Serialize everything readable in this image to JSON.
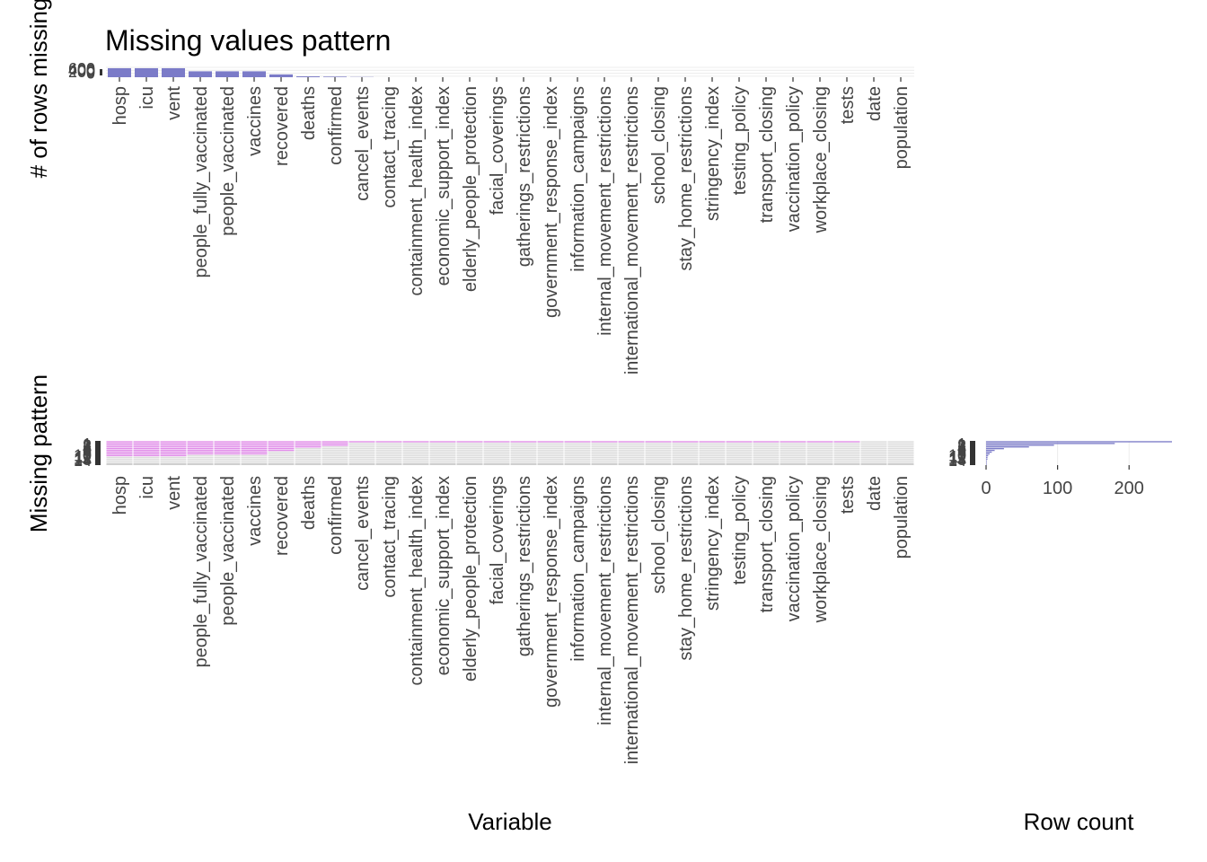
{
  "chart_data": [
    {
      "type": "bar",
      "title": "Missing values pattern",
      "xlabel": "",
      "ylabel": "# of rows missing",
      "ytick_labels": [
        "600",
        "400",
        "200",
        "0"
      ],
      "categories": [
        "hosp",
        "icu",
        "vent",
        "people_fully_vaccinated",
        "people_vaccinated",
        "vaccines",
        "recovered",
        "deaths",
        "confirmed",
        "cancel_events",
        "contact_tracing",
        "containment_health_index",
        "economic_support_index",
        "elderly_people_protection",
        "facial_coverings",
        "gatherings_restrictions",
        "government_response_index",
        "information_campaigns",
        "internal_movement_restrictions",
        "international_movement_restrictions",
        "school_closing",
        "stay_home_restrictions",
        "stringency_index",
        "testing_policy",
        "transport_closing",
        "vaccination_policy",
        "workplace_closing",
        "tests",
        "date",
        "population"
      ],
      "values": [
        640,
        640,
        640,
        420,
        420,
        420,
        200,
        60,
        40,
        15,
        0,
        0,
        0,
        0,
        0,
        0,
        0,
        0,
        0,
        0,
        0,
        0,
        0,
        0,
        0,
        0,
        0,
        0,
        0,
        0
      ],
      "ylim": [
        0,
        700
      ],
      "color": "#7b7bc8"
    },
    {
      "type": "heatmap",
      "ylabel": "Missing pattern",
      "xlabel": "Variable",
      "pattern_labels": [
        "1",
        "2",
        "3",
        "4",
        "5",
        "6",
        "7",
        "8",
        "9",
        "10",
        "11",
        "12",
        "13",
        "14"
      ],
      "x_tick_labels": [
        "hosp",
        "icu",
        "vent",
        "people_fully_vaccinated",
        "people_vaccinated",
        "vaccines",
        "recovered",
        "deaths",
        "confirmed",
        "cancel_events",
        "contact_tracing",
        "containment_health_index",
        "economic_support_index",
        "elderly_people_protection",
        "facial_coverings",
        "gatherings_restrictions",
        "government_response_index",
        "information_campaigns",
        "internal_movement_restrictions",
        "international_movement_restrictions",
        "school_closing",
        "stay_home_restrictions",
        "stringency_index",
        "testing_policy",
        "transport_closing",
        "vaccination_policy",
        "workplace_closing",
        "tests",
        "date",
        "population"
      ],
      "missing_counts": [
        9,
        9,
        9,
        8,
        8,
        8,
        6,
        4,
        3,
        1,
        1,
        1,
        1,
        1,
        1,
        1,
        1,
        1,
        1,
        1,
        1,
        1,
        1,
        1,
        1,
        1,
        1,
        1,
        0,
        0
      ],
      "colors": {
        "missing": "#e08ae8",
        "present": "#dcdcdc",
        "complete": "#b8b8b8"
      }
    },
    {
      "type": "bar",
      "orientation": "horizontal",
      "xlabel": "Row count",
      "categories": [
        "1",
        "2",
        "3",
        "4",
        "5",
        "6",
        "7",
        "8",
        "9",
        "10",
        "11",
        "12",
        "13",
        "14"
      ],
      "values": [
        260,
        180,
        95,
        60,
        25,
        12,
        8,
        5,
        3,
        2,
        2,
        1,
        1,
        1
      ],
      "xticks": [
        0,
        100,
        200
      ],
      "xtick_labels": [
        "0",
        "100",
        "200"
      ],
      "xlim": [
        0,
        260
      ],
      "color": "#7b7bc8"
    }
  ]
}
